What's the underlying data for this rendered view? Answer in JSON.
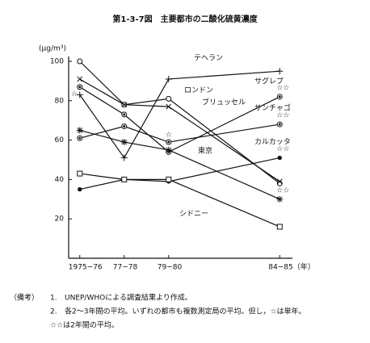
{
  "chart_data": {
    "type": "line",
    "title": "第1-3-7図　主要都市の二酸化硫黄濃度",
    "y_label": "(μg/m³)",
    "x": [
      1975.5,
      1977.5,
      1979.5,
      1984.5
    ],
    "xlim": [
      1975,
      1985
    ],
    "xticks": [
      {
        "value": 1975.5,
        "label": "1975−76"
      },
      {
        "value": 1977.5,
        "label": "77−78"
      },
      {
        "value": 1979.5,
        "label": "79−80"
      },
      {
        "value": 1984.5,
        "label": "84−85（年）"
      }
    ],
    "ylim": [
      0,
      100
    ],
    "yticks": [
      20,
      40,
      60,
      80,
      100
    ],
    "series": [
      {
        "name": "テヘラン",
        "color": "#111",
        "marker": "plus",
        "values": [
          83,
          51,
          91,
          95
        ],
        "notes": [
          "☆",
          null,
          null,
          null
        ]
      },
      {
        "name": "ロンドン",
        "color": "#111",
        "marker": "circle",
        "values": [
          100,
          78,
          81,
          38
        ],
        "notes": [
          null,
          null,
          null,
          null
        ]
      },
      {
        "name": "ブリュッセル",
        "color": "#111",
        "marker": "x",
        "values": [
          91,
          78,
          77,
          39
        ],
        "notes": [
          null,
          null,
          null,
          null
        ]
      },
      {
        "name": "サグレブ",
        "color": "#111",
        "marker": "dot-circle",
        "values": [
          87,
          73,
          54,
          82
        ],
        "notes": [
          null,
          null,
          null,
          "☆☆"
        ]
      },
      {
        "name": "サンチャゴ",
        "color": "#111",
        "marker": "dot-circle",
        "values": [
          61,
          67,
          59,
          68
        ],
        "notes": [
          null,
          null,
          "☆",
          "☆☆"
        ]
      },
      {
        "name": "カルカッタ",
        "color": "#111",
        "marker": "dot",
        "values": [
          35,
          40,
          39,
          51
        ],
        "notes": [
          null,
          null,
          null,
          "☆☆"
        ]
      },
      {
        "name": "東京",
        "color": "#111",
        "marker": "asterisk",
        "values": [
          65,
          59,
          55,
          30
        ],
        "notes": [
          null,
          null,
          null,
          "☆☆"
        ]
      },
      {
        "name": "シドニー",
        "color": "#111",
        "marker": "square",
        "values": [
          43,
          40,
          40,
          16
        ],
        "notes": [
          null,
          null,
          null,
          null
        ]
      }
    ],
    "footnote": {
      "heading": "（備考）",
      "items": [
        {
          "num": "1.",
          "lines": [
            "UNEP/WHOによる調査結果より作成。"
          ]
        },
        {
          "num": "2.",
          "lines": [
            "各2～3年間の平均。いずれの都市も複数測定局の平均。但し，☆は単年。",
            "☆☆は2年間の平均。"
          ]
        }
      ]
    }
  }
}
